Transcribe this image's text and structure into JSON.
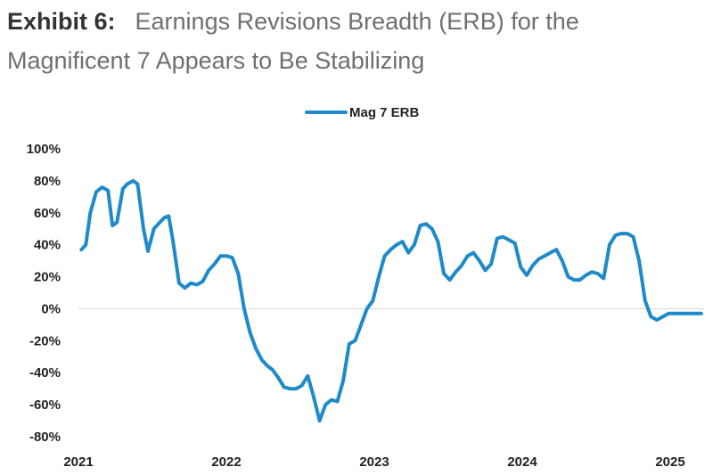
{
  "header": {
    "exhibit": "Exhibit 6:",
    "title_line1": "Earnings Revisions Breadth (ERB) for the",
    "title_line2": "Magnificent 7 Appears to Be Stabilizing"
  },
  "colors": {
    "series": "#1f8ac9",
    "zero_line": "#d9d9d9",
    "text": "#222222"
  },
  "chart_data": {
    "type": "line",
    "title": "Earnings Revisions Breadth (ERB) for the Magnificent 7 Appears to Be Stabilizing",
    "xlabel": "",
    "ylabel": "",
    "xlim": [
      2021.0,
      2025.25
    ],
    "ylim": [
      -80,
      100
    ],
    "xticks": [
      {
        "value": 2021,
        "label": "2021"
      },
      {
        "value": 2022,
        "label": "2022"
      },
      {
        "value": 2023,
        "label": "2023"
      },
      {
        "value": 2024,
        "label": "2024"
      },
      {
        "value": 2025,
        "label": "2025"
      }
    ],
    "yticks": [
      {
        "value": 100,
        "label": "100%"
      },
      {
        "value": 80,
        "label": "80%"
      },
      {
        "value": 60,
        "label": "60%"
      },
      {
        "value": 40,
        "label": "40%"
      },
      {
        "value": 20,
        "label": "20%"
      },
      {
        "value": 0,
        "label": "0%"
      },
      {
        "value": -20,
        "label": "-20%"
      },
      {
        "value": -40,
        "label": "-40%"
      },
      {
        "value": -60,
        "label": "-60%"
      },
      {
        "value": -80,
        "label": "-80%"
      }
    ],
    "legend": {
      "position": "top-center"
    },
    "grid": false,
    "series": [
      {
        "name": "Mag 7 ERB",
        "x": [
          2021.02,
          2021.05,
          2021.08,
          2021.12,
          2021.16,
          2021.2,
          2021.23,
          2021.26,
          2021.3,
          2021.33,
          2021.37,
          2021.4,
          2021.44,
          2021.47,
          2021.51,
          2021.54,
          2021.58,
          2021.61,
          2021.64,
          2021.68,
          2021.72,
          2021.76,
          2021.8,
          2021.84,
          2021.88,
          2021.92,
          2021.96,
          2022.0,
          2022.04,
          2022.08,
          2022.12,
          2022.16,
          2022.2,
          2022.24,
          2022.28,
          2022.31,
          2022.35,
          2022.39,
          2022.43,
          2022.47,
          2022.51,
          2022.55,
          2022.59,
          2022.63,
          2022.67,
          2022.71,
          2022.75,
          2022.79,
          2022.83,
          2022.87,
          2022.91,
          2022.95,
          2022.99,
          2023.03,
          2023.07,
          2023.11,
          2023.15,
          2023.19,
          2023.23,
          2023.27,
          2023.31,
          2023.35,
          2023.39,
          2023.43,
          2023.47,
          2023.51,
          2023.55,
          2023.59,
          2023.63,
          2023.67,
          2023.71,
          2023.75,
          2023.79,
          2023.83,
          2023.87,
          2023.91,
          2023.95,
          2023.99,
          2024.03,
          2024.07,
          2024.11,
          2024.15,
          2024.19,
          2024.23,
          2024.27,
          2024.31,
          2024.35,
          2024.39,
          2024.43,
          2024.47,
          2024.51,
          2024.55,
          2024.59,
          2024.63,
          2024.67,
          2024.71,
          2024.75,
          2024.79,
          2024.83,
          2024.87,
          2024.91,
          2024.95,
          2024.99,
          2025.03,
          2025.07,
          2025.1,
          2025.13,
          2025.16,
          2025.21
        ],
        "values": [
          37,
          40,
          60,
          73,
          76,
          74,
          52,
          54,
          75,
          78,
          80,
          78,
          50,
          36,
          50,
          53,
          57,
          58,
          42,
          16,
          13,
          16,
          15,
          17,
          24,
          28,
          33,
          33,
          32,
          22,
          0,
          -15,
          -25,
          -32,
          -36,
          -38,
          -43,
          -49,
          -50,
          -50,
          -48,
          -42,
          -55,
          -70,
          -60,
          -57,
          -58,
          -45,
          -22,
          -20,
          -10,
          0,
          5,
          20,
          33,
          37,
          40,
          42,
          35,
          40,
          52,
          53,
          50,
          42,
          22,
          18,
          23,
          27,
          33,
          35,
          30,
          24,
          28,
          44,
          45,
          43,
          41,
          26,
          21,
          27,
          31,
          33,
          35,
          37,
          30,
          20,
          18,
          18,
          21,
          23,
          22,
          19,
          40,
          46,
          47,
          47,
          45,
          30,
          5,
          -5,
          -7,
          -5,
          -3,
          -3,
          -3,
          -3,
          -3,
          -3,
          -3
        ]
      }
    ]
  }
}
